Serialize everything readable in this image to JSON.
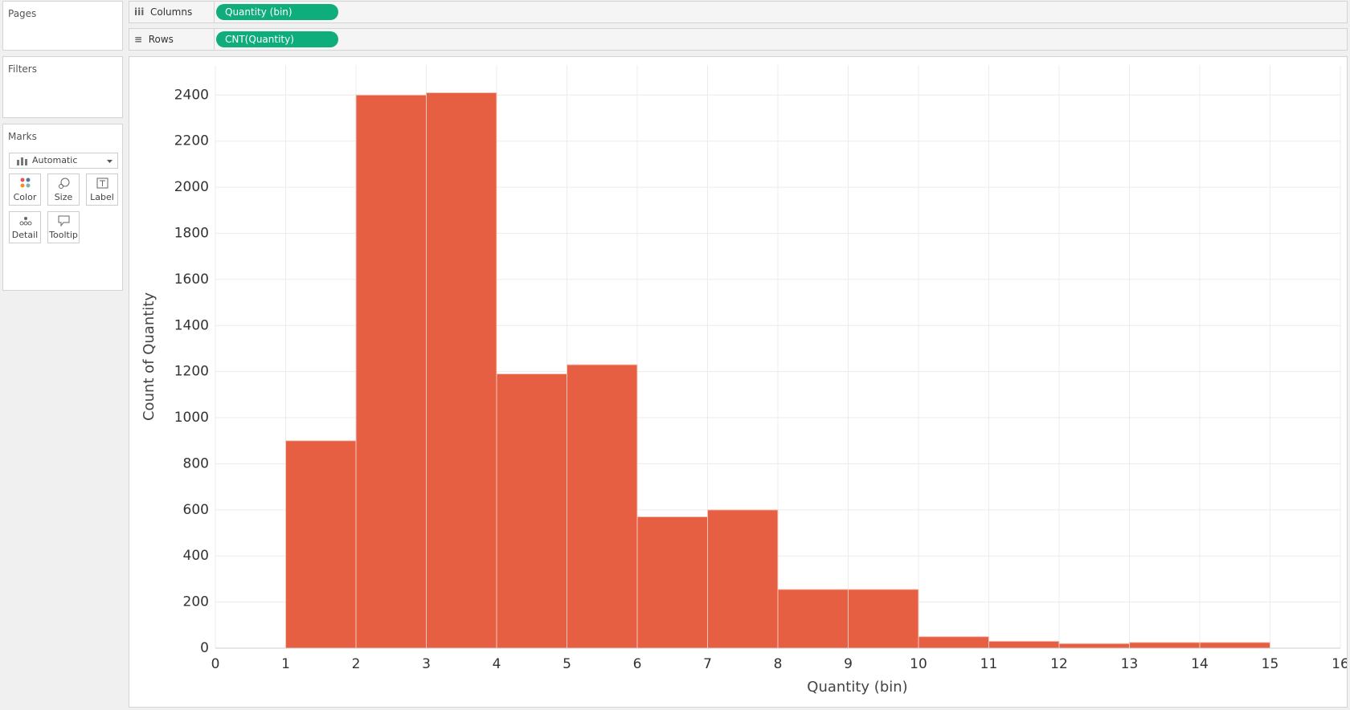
{
  "ui": {
    "pages": "Pages",
    "columns_label": "Columns",
    "columns_pill": "Quantity (bin)",
    "rows_label": "Rows",
    "rows_pill": "CNT(Quantity)",
    "filters": "Filters",
    "marks": "Marks",
    "mark_type": "Automatic",
    "mark_buttons": [
      "Color",
      "Size",
      "Label",
      "Detail",
      "Tooltip"
    ]
  },
  "chart_data": {
    "type": "histogram",
    "x_label": "Quantity (bin)",
    "y_label": "Count of Quantity",
    "bins": [
      1,
      2,
      3,
      4,
      5,
      6,
      7,
      8,
      9,
      10,
      11,
      12,
      13,
      14,
      15
    ],
    "counts": [
      900,
      2400,
      2410,
      1190,
      1230,
      570,
      600,
      255,
      255,
      50,
      30,
      20,
      25,
      25
    ],
    "color": "#e65f43",
    "xlim": [
      0,
      16
    ],
    "xticks": [
      0,
      1,
      2,
      3,
      4,
      5,
      6,
      7,
      8,
      9,
      10,
      11,
      12,
      13,
      14,
      15,
      16
    ],
    "ylim": [
      0,
      2530
    ],
    "yticks": [
      0,
      200,
      400,
      600,
      800,
      1000,
      1200,
      1400,
      1600,
      1800,
      2000,
      2200,
      2400
    ],
    "grid": true
  }
}
